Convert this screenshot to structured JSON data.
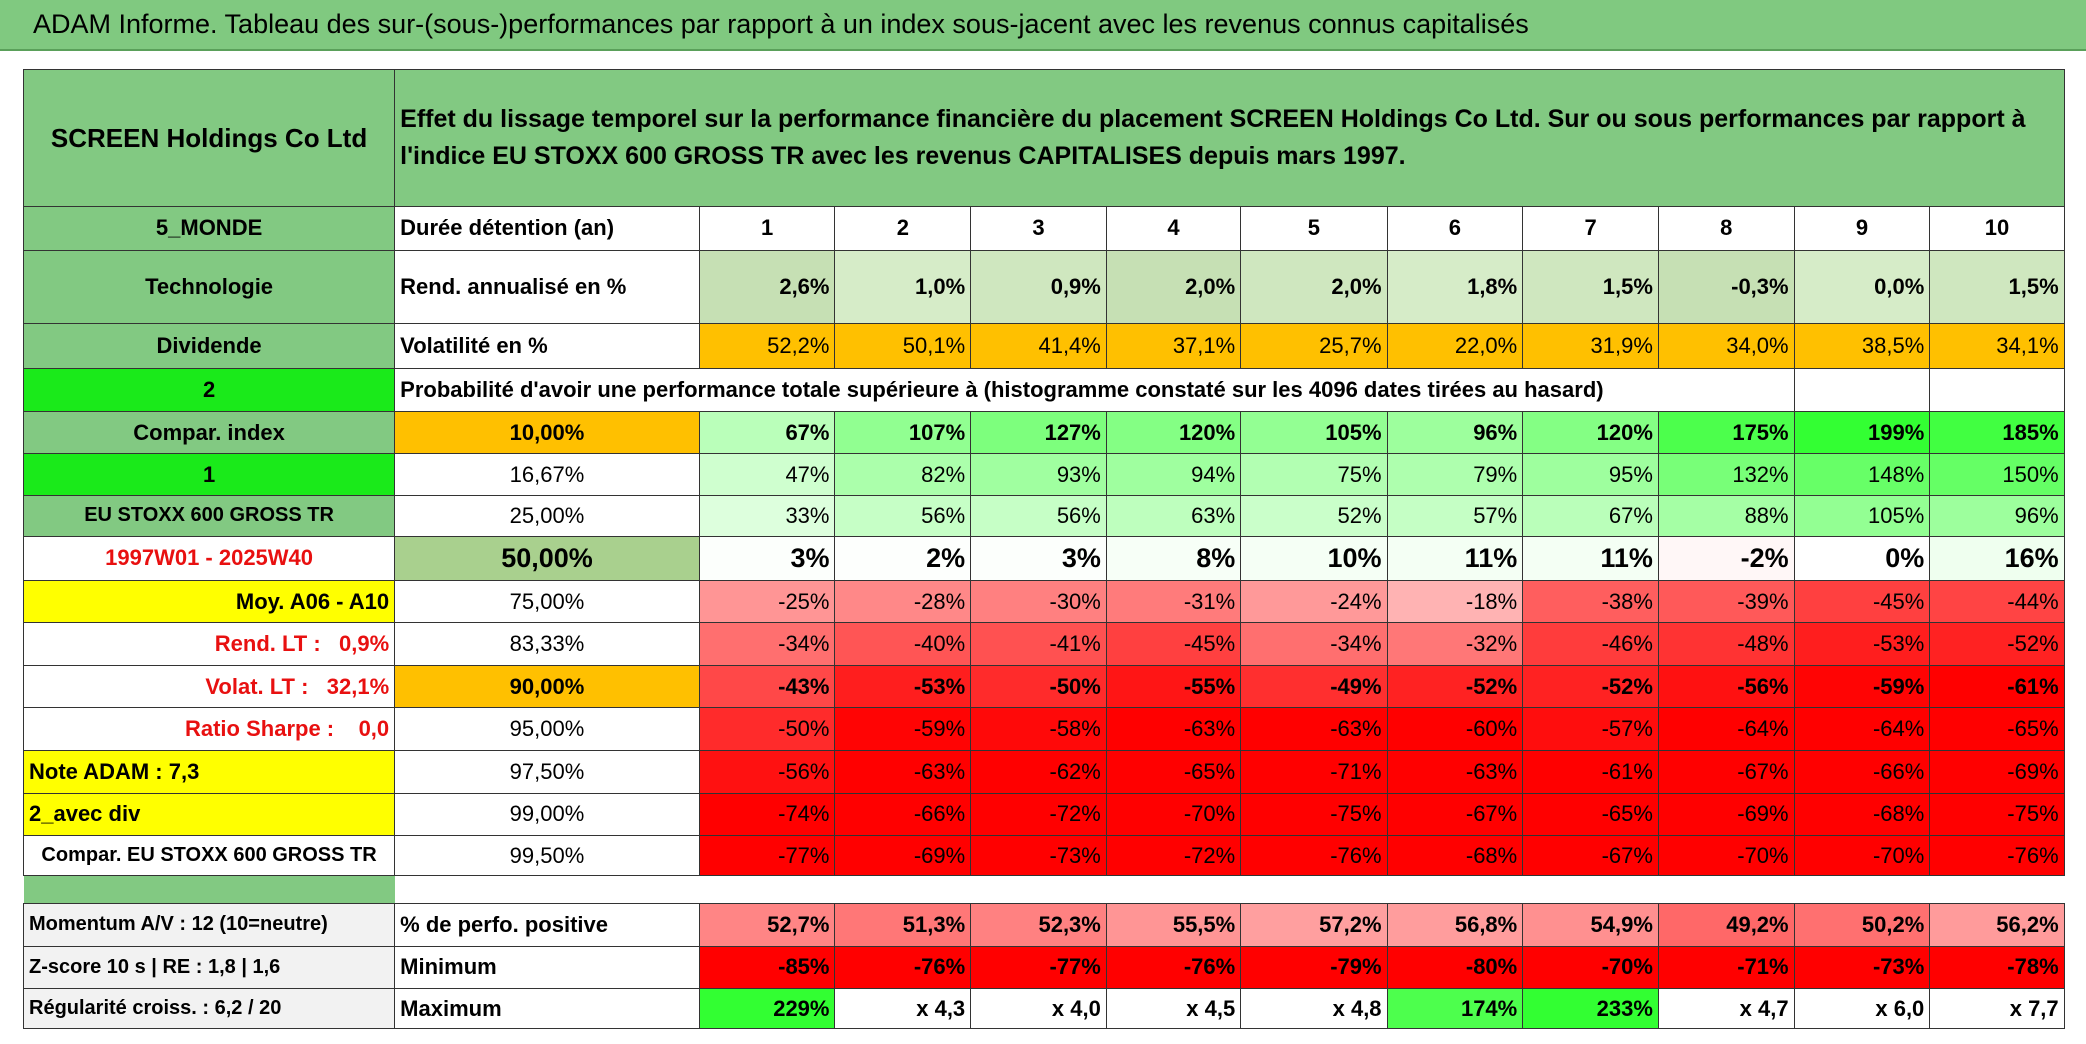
{
  "title": "ADAM Informe. Tableau des sur-(sous-)performances par rapport à un index sous-jacent avec les revenus connus capitalisés",
  "table": {
    "header": [
      "SCREEN Holdings Co Ltd",
      "Effet du lissage temporel sur la performance financière du placement SCREEN Holdings Co Ltd. Sur ou sous performances par rapport à l'indice EU STOXX 600 GROSS TR avec les revenus CAPITALISES depuis mars 1997."
    ],
    "rows": [
      [
        "5_MONDE",
        "Durée détention (an)",
        "1",
        "2",
        "3",
        "4",
        "5",
        "6",
        "7",
        "8",
        "9",
        "10"
      ],
      [
        "Technologie",
        "Rend. annualisé en %",
        "2,6%",
        "1,0%",
        "0,9%",
        "2,0%",
        "2,0%",
        "1,8%",
        "1,5%",
        "-0,3%",
        "0,0%",
        "1,5%"
      ],
      [
        "Dividende",
        "Volatilité en %",
        "52,2%",
        "50,1%",
        "41,4%",
        "37,1%",
        "25,7%",
        "22,0%",
        "31,9%",
        "34,0%",
        "38,5%",
        "34,1%"
      ],
      [
        "2",
        "Probabilité d'avoir une performance totale supérieure à (histogramme constaté sur les 4096 dates tirées au hasard)"
      ],
      [
        "Compar. index",
        "10,00%",
        "67%",
        "107%",
        "127%",
        "120%",
        "105%",
        "96%",
        "120%",
        "175%",
        "199%",
        "185%"
      ],
      [
        "1",
        "16,67%",
        "47%",
        "82%",
        "93%",
        "94%",
        "75%",
        "79%",
        "95%",
        "132%",
        "148%",
        "150%"
      ],
      [
        "EU STOXX 600 GROSS TR",
        "25,00%",
        "33%",
        "56%",
        "56%",
        "63%",
        "52%",
        "57%",
        "67%",
        "88%",
        "105%",
        "96%"
      ],
      [
        "1997W01 - 2025W40",
        "50,00%",
        "3%",
        "2%",
        "3%",
        "8%",
        "10%",
        "11%",
        "11%",
        "-2%",
        "0%",
        "16%"
      ],
      [
        "Moy. A06 - A10",
        "75,00%",
        "-25%",
        "-28%",
        "-30%",
        "-31%",
        "-24%",
        "-18%",
        "-38%",
        "-39%",
        "-45%",
        "-44%"
      ],
      [
        "Rend. LT :   0,9%",
        "83,33%",
        "-34%",
        "-40%",
        "-41%",
        "-45%",
        "-34%",
        "-32%",
        "-46%",
        "-48%",
        "-53%",
        "-52%"
      ],
      [
        "Volat. LT :   32,1%",
        "90,00%",
        "-43%",
        "-53%",
        "-50%",
        "-55%",
        "-49%",
        "-52%",
        "-52%",
        "-56%",
        "-59%",
        "-61%"
      ],
      [
        "Ratio Sharpe :    0,0",
        "95,00%",
        "-50%",
        "-59%",
        "-58%",
        "-63%",
        "-63%",
        "-60%",
        "-57%",
        "-64%",
        "-64%",
        "-65%"
      ],
      [
        "Note ADAM : 7,3",
        "97,50%",
        "-56%",
        "-63%",
        "-62%",
        "-65%",
        "-71%",
        "-63%",
        "-61%",
        "-67%",
        "-66%",
        "-69%"
      ],
      [
        "2_avec div",
        "99,00%",
        "-74%",
        "-66%",
        "-72%",
        "-70%",
        "-75%",
        "-67%",
        "-65%",
        "-69%",
        "-68%",
        "-75%"
      ],
      [
        "Compar. EU STOXX 600 GROSS TR",
        "99,50%",
        "-77%",
        "-69%",
        "-73%",
        "-72%",
        "-76%",
        "-68%",
        "-67%",
        "-70%",
        "-70%",
        "-76%"
      ]
    ],
    "footer_rows": [
      [
        "Momentum A/V : 12 (10=neutre)",
        "% de perfo. positive",
        "52,7%",
        "51,3%",
        "52,3%",
        "55,5%",
        "57,2%",
        "56,8%",
        "54,9%",
        "49,2%",
        "50,2%",
        "56,2%"
      ],
      [
        "Z-score 10 s | RE : 1,8 | 1,6",
        "Minimum",
        "-85%",
        "-76%",
        "-77%",
        "-76%",
        "-79%",
        "-80%",
        "-70%",
        "-71%",
        "-73%",
        "-78%"
      ],
      [
        "Régularité croiss. : 6,2 / 20",
        "Maximum",
        "229%",
        "x 4,3",
        "x 4,0",
        "x 4,5",
        "x 4,8",
        "174%",
        "233%",
        "x 4,7",
        "x 6,0",
        "x 7,7"
      ]
    ]
  }
}
